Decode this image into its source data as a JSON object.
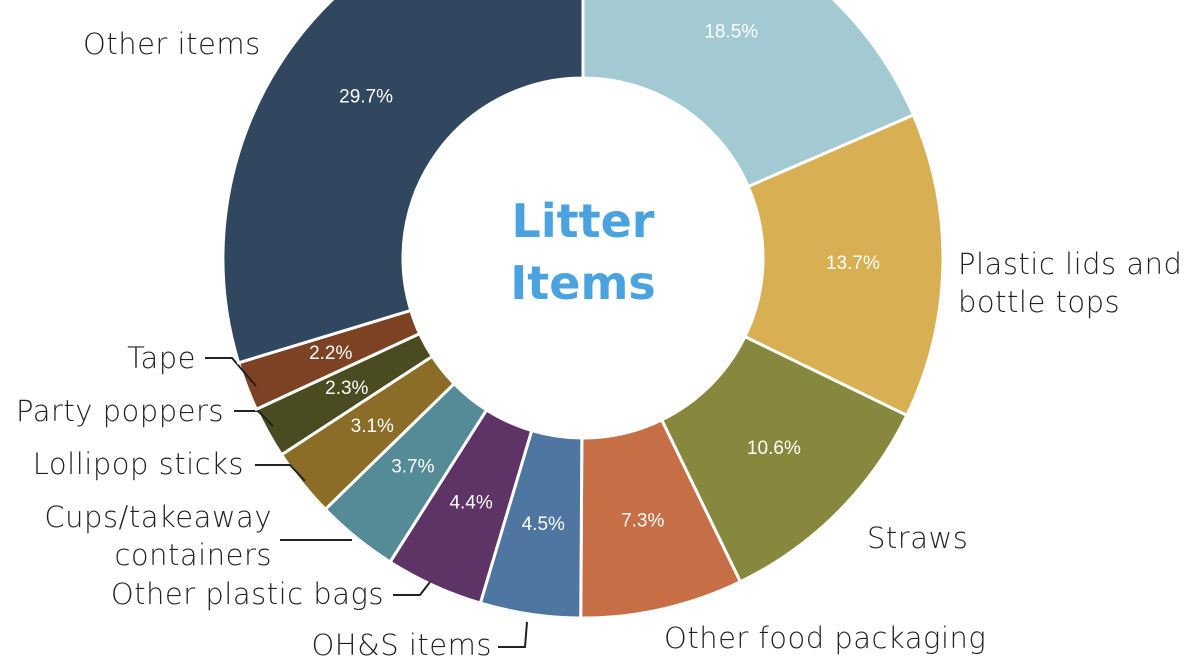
{
  "chart_data": {
    "type": "pie",
    "title": "Litter Items",
    "categories": [
      null,
      "Plastic lids and bottle tops",
      "Straws",
      "Other food packaging",
      "OH&S items",
      "Other plastic bags",
      "Cups/takeaway containers",
      "Lollipop sticks",
      "Party poppers",
      "Tape",
      "Other items"
    ],
    "values": [
      18.5,
      13.7,
      10.6,
      7.3,
      4.5,
      4.4,
      3.7,
      3.1,
      2.3,
      2.2,
      29.7
    ],
    "value_labels": [
      "18.5%",
      "13.7%",
      "10.6%",
      "7.3%",
      "4.5%",
      "4.4%",
      "3.7%",
      "3.1%",
      "2.3%",
      "2.2%",
      "29.7%"
    ],
    "colors": [
      "#a3c9d3",
      "#d8b053",
      "#87883e",
      "#c66e45",
      "#4e76a1",
      "#5e3366",
      "#558b96",
      "#8c6d27",
      "#4a4b20",
      "#7d4224",
      "#31465f"
    ]
  }
}
